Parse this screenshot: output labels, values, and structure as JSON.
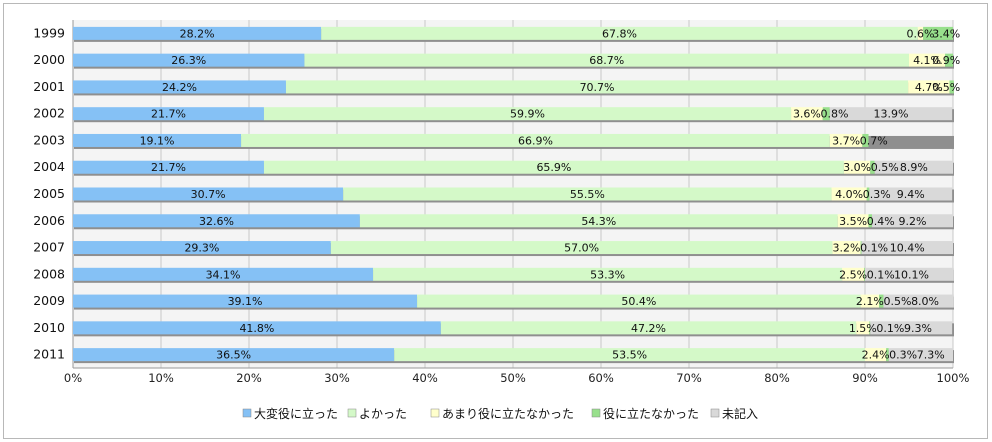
{
  "chart_data": {
    "type": "bar",
    "orientation": "horizontal",
    "stacked": "percent",
    "categories": [
      "1999",
      "2000",
      "2001",
      "2002",
      "2003",
      "2004",
      "2005",
      "2006",
      "2007",
      "2008",
      "2009",
      "2010",
      "2011"
    ],
    "series": [
      {
        "name": "大変役に立った",
        "color": "#85c1f5",
        "values": [
          28.2,
          26.3,
          24.2,
          21.7,
          19.1,
          21.7,
          30.7,
          32.6,
          29.3,
          34.1,
          39.1,
          41.8,
          36.5
        ]
      },
      {
        "name": "よかった",
        "color": "#d4f9c8",
        "values": [
          67.8,
          68.7,
          70.7,
          59.9,
          66.9,
          65.9,
          55.5,
          54.3,
          57.0,
          53.3,
          50.4,
          47.2,
          53.5
        ]
      },
      {
        "name": "あまり役に立たなかった",
        "color": "#ffffcc",
        "values": [
          0.6,
          4.1,
          4.7,
          3.6,
          3.7,
          3.0,
          4.0,
          3.5,
          3.2,
          2.5,
          2.1,
          1.5,
          2.4
        ]
      },
      {
        "name": "役に立たなかった",
        "color": "#98e08c",
        "values": [
          3.4,
          0.9,
          0.5,
          0.8,
          0.7,
          0.5,
          0.3,
          0.4,
          0.1,
          0.1,
          0.5,
          0.1,
          0.3
        ]
      },
      {
        "name": "未記入",
        "color": "#d9d9d9",
        "values": [
          null,
          null,
          null,
          13.9,
          null,
          8.9,
          9.4,
          9.2,
          10.4,
          10.1,
          8.0,
          9.3,
          7.3
        ]
      }
    ],
    "x_ticks": [
      "0%",
      "10%",
      "20%",
      "30%",
      "40%",
      "50%",
      "60%",
      "70%",
      "80%",
      "90%",
      "100%"
    ],
    "xlim": [
      0,
      100
    ],
    "legend_position": "bottom",
    "grid": "vertical"
  }
}
